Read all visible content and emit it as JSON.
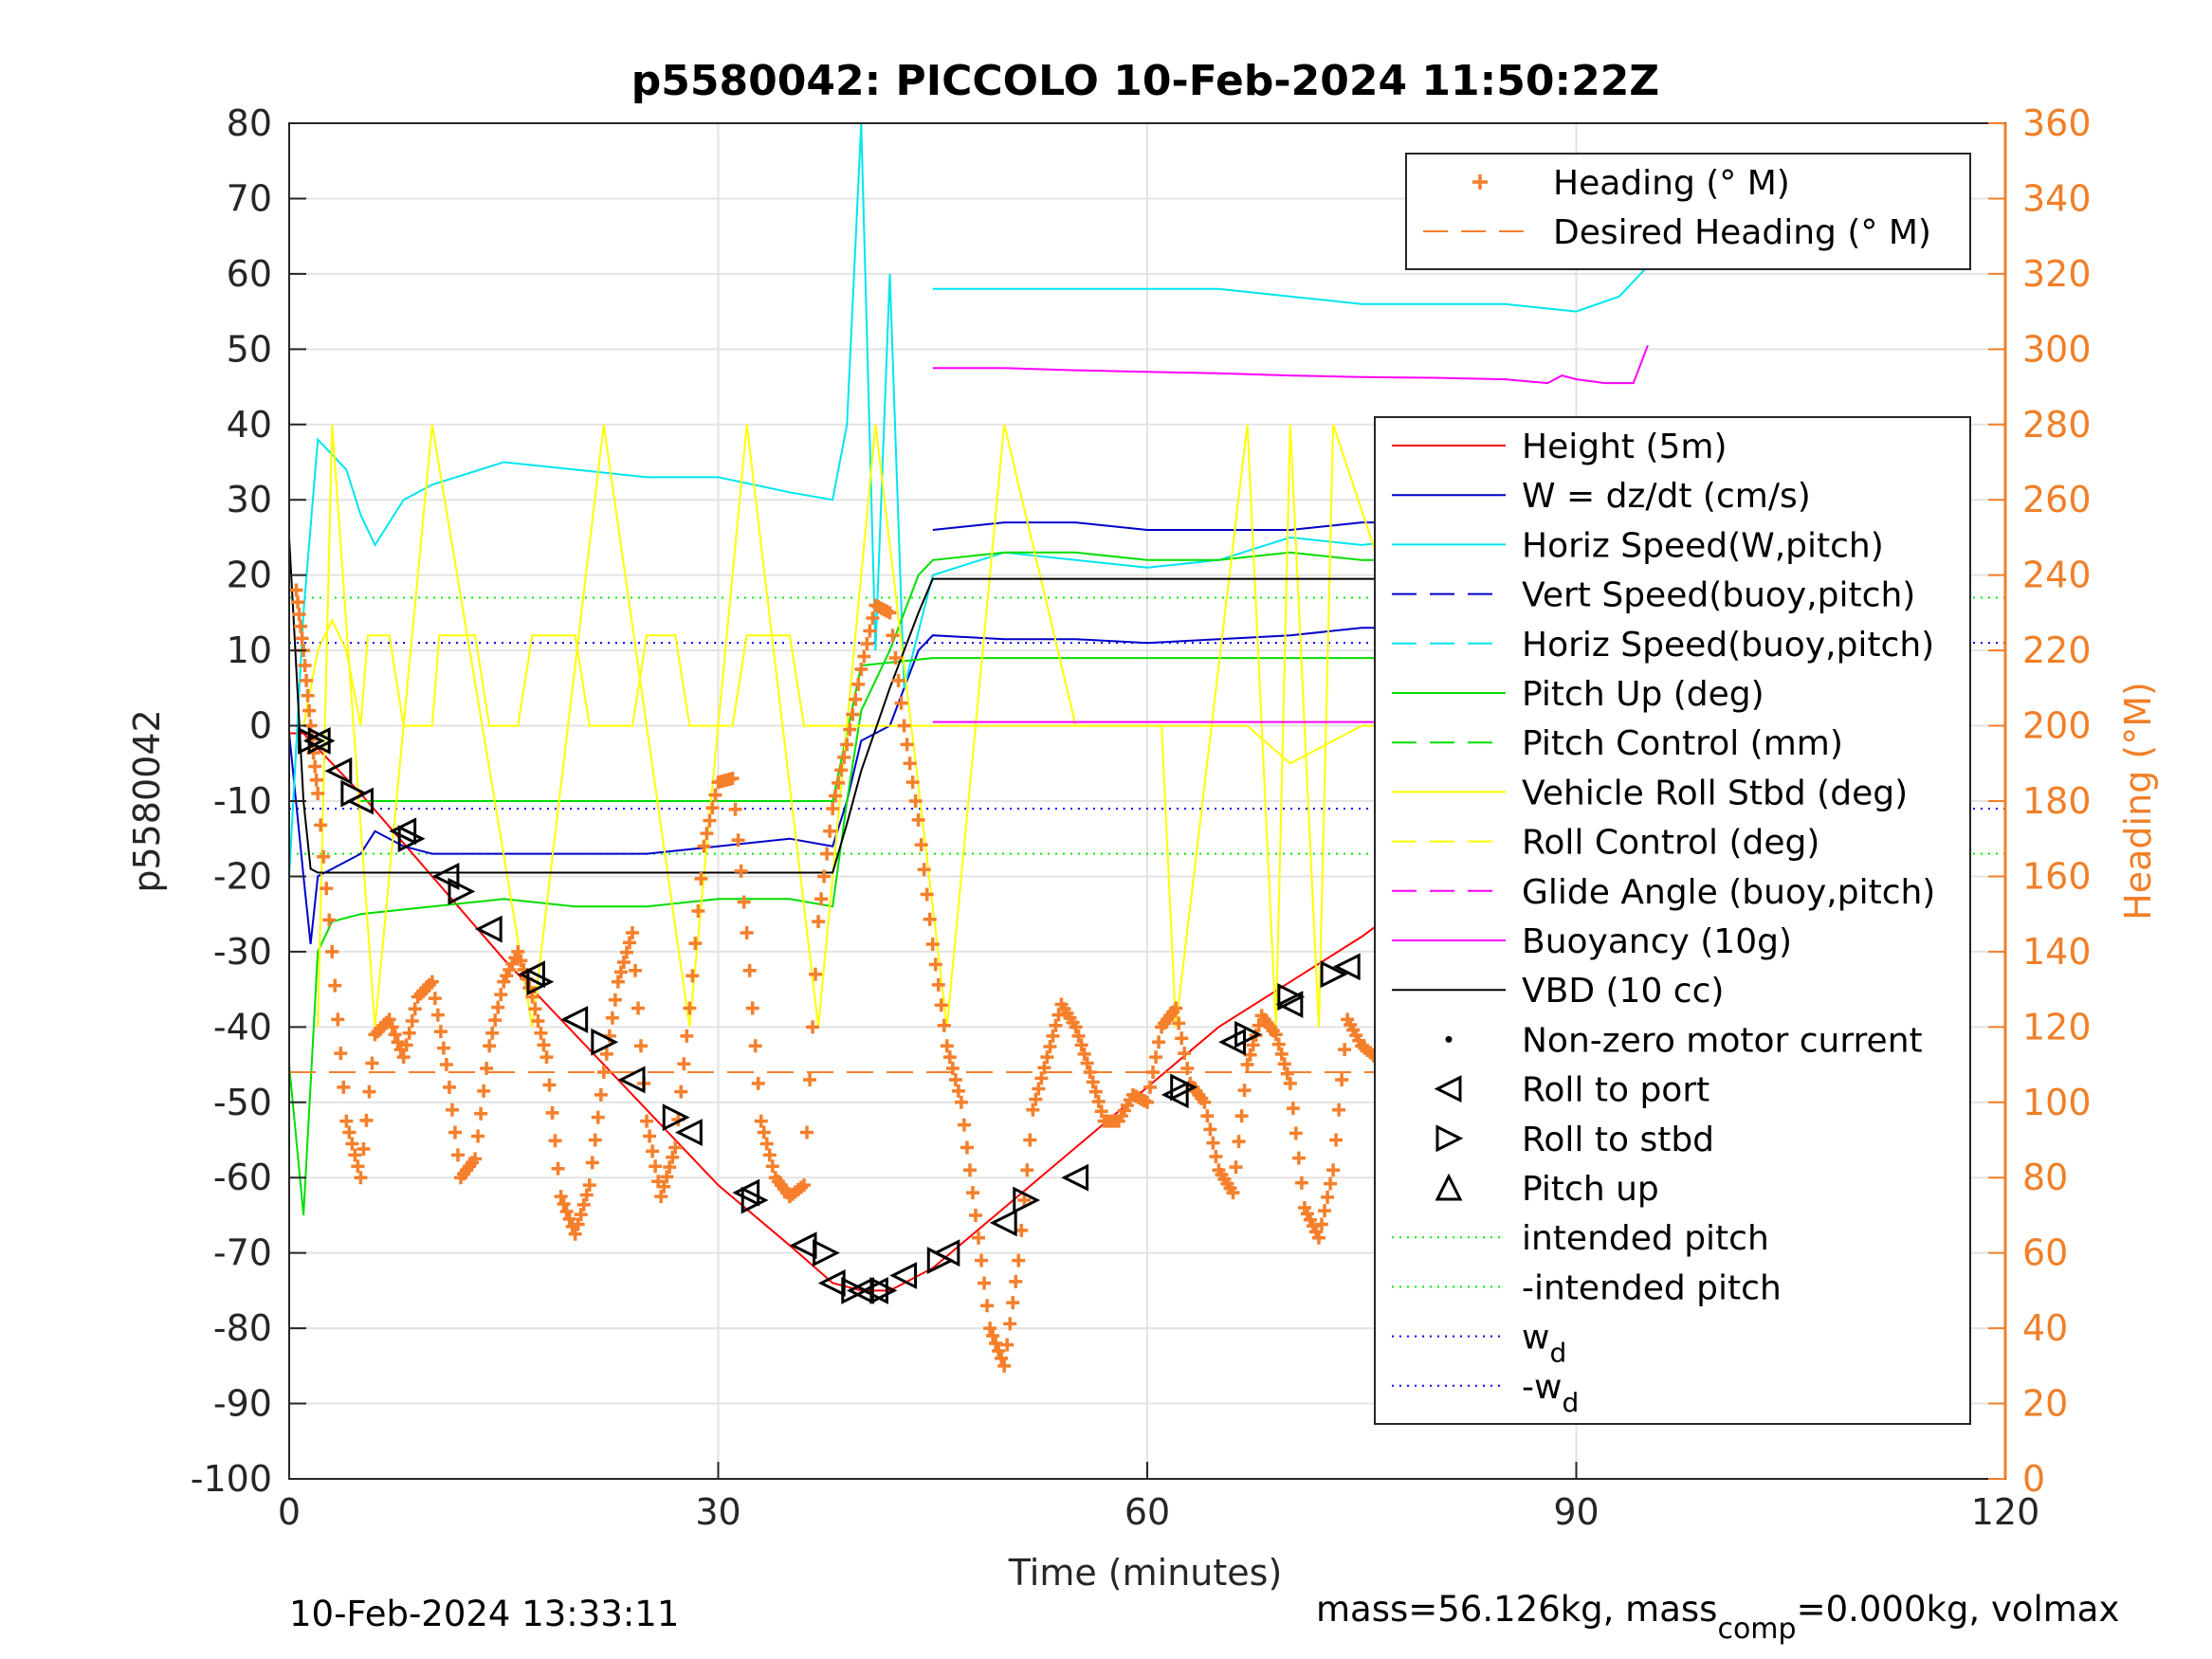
{
  "chart_data": {
    "type": "line",
    "title": "p5580042: PICCOLO 10-Feb-2024 11:50:22Z",
    "xlabel": "Time (minutes)",
    "ylabel": "p5580042",
    "ylabel_right": "Heading (°M)",
    "xlim": [
      0,
      120
    ],
    "ylim": [
      -100,
      80
    ],
    "ylim_right": [
      0,
      360
    ],
    "xticks": [
      "0",
      "30",
      "60",
      "90",
      "120"
    ],
    "yticks": [
      "80",
      "70",
      "60",
      "50",
      "40",
      "30",
      "20",
      "10",
      "0",
      "-10",
      "-20",
      "-30",
      "-40",
      "-50",
      "-60",
      "-70",
      "-80",
      "-90",
      "-100"
    ],
    "yticks_right": [
      "360",
      "340",
      "320",
      "300",
      "280",
      "260",
      "240",
      "220",
      "200",
      "180",
      "160",
      "140",
      "120",
      "100",
      "80",
      "60",
      "40",
      "20",
      "0"
    ],
    "grid": true,
    "footer_left": "10-Feb-2024 13:33:11",
    "footer_right": "mass=56.126kg, mass",
    "footer_right_sub": "comp",
    "footer_right_tail": "=0.000kg, volmax",
    "colors": {
      "axis_right": "#f07f28",
      "heading": "#f57f2a"
    },
    "legend_heading": [
      {
        "label": "Heading (° M)",
        "color": "#f57f2a",
        "style": "plus"
      },
      {
        "label": "Desired Heading (° M)",
        "color": "#f57f2a",
        "style": "dash"
      }
    ],
    "legend_main": [
      {
        "label": "Height (5m)",
        "color": "#ff0000",
        "style": "solid"
      },
      {
        "label": "W = dz/dt (cm/s)",
        "color": "#0000cc",
        "style": "solid"
      },
      {
        "label": "Horiz Speed(W,pitch)",
        "color": "#00e5ee",
        "style": "solid"
      },
      {
        "label": "Vert Speed(buoy,pitch)",
        "color": "#0000cc",
        "style": "dash"
      },
      {
        "label": "Horiz Speed(buoy,pitch)",
        "color": "#00e5ee",
        "style": "dash"
      },
      {
        "label": "Pitch Up (deg)",
        "color": "#00dd00",
        "style": "solid"
      },
      {
        "label": "Pitch Control (mm)",
        "color": "#00dd00",
        "style": "dash"
      },
      {
        "label": "Vehicle Roll Stbd (deg)",
        "color": "#ffff00",
        "style": "solid"
      },
      {
        "label": "Roll Control (deg)",
        "color": "#ffff00",
        "style": "dash"
      },
      {
        "label": "Glide Angle (buoy,pitch)",
        "color": "#ff00ff",
        "style": "dash"
      },
      {
        "label": "Buoyancy (10g)",
        "color": "#ff00ff",
        "style": "solid"
      },
      {
        "label": "VBD (10 cc)",
        "color": "#000000",
        "style": "solid"
      },
      {
        "label": "Non-zero motor current",
        "color": "#000000",
        "style": "dot"
      },
      {
        "label": "Roll to port",
        "color": "#000000",
        "style": "tri-left"
      },
      {
        "label": "Roll to stbd",
        "color": "#000000",
        "style": "tri-right"
      },
      {
        "label": "Pitch up",
        "color": "#000000",
        "style": "tri-up"
      },
      {
        "label": "intended pitch",
        "color": "#00ee00",
        "style": "dotted"
      },
      {
        "label": "-intended pitch",
        "color": "#00ee00",
        "style": "dotted"
      },
      {
        "label": "w",
        "sub": "d",
        "color": "#0000ff",
        "style": "dotted"
      },
      {
        "label": "-w",
        "sub": "d",
        "color": "#0000ff",
        "style": "dotted"
      }
    ],
    "reference_lines": [
      {
        "name": "intended pitch",
        "y": 17,
        "color": "#00ee00"
      },
      {
        "name": "-intended pitch",
        "y": -17,
        "color": "#00ee00"
      },
      {
        "name": "w_d",
        "y": 11,
        "color": "#0000ff"
      },
      {
        "name": "-w_d",
        "y": -11,
        "color": "#0000ff"
      }
    ],
    "series": [
      {
        "name": "Height (5m)",
        "color": "#ff0000",
        "x": [
          0,
          1,
          2,
          5,
          10,
          15,
          20,
          25,
          30,
          35,
          38,
          40,
          42,
          45,
          50,
          55,
          60,
          65,
          70,
          75,
          80,
          85,
          90,
          95
        ],
        "y": [
          -1,
          -1,
          -3,
          -9,
          -20,
          -31,
          -41,
          -51,
          -61,
          -69,
          -74,
          -75,
          -75,
          -72,
          -64,
          -56,
          -48,
          -40,
          -34,
          -28,
          -21,
          -14,
          -7,
          -1
        ]
      },
      {
        "name": "W = dz/dt (cm/s)",
        "color": "#0000cc",
        "x": [
          0,
          1,
          1.5,
          2,
          3,
          5,
          6,
          8,
          10,
          15,
          20,
          25,
          30,
          35,
          38,
          39,
          40,
          42,
          44,
          45,
          50,
          55,
          60,
          65,
          70,
          75,
          80,
          85,
          90,
          94,
          95
        ],
        "y": [
          -1,
          -20,
          -29,
          -20,
          -19,
          -17,
          -14,
          -16,
          -17,
          -17,
          -17,
          -17,
          -16,
          -15,
          -16,
          -10,
          -2,
          0,
          10,
          12,
          11.5,
          11.5,
          11,
          11.5,
          12,
          13,
          13,
          12.5,
          12,
          11,
          13
        ]
      },
      {
        "name": "Horiz Speed(W,pitch)",
        "color": "#00e5ee",
        "x": [
          0,
          1,
          2,
          4,
          5,
          6,
          8,
          10,
          15,
          20,
          25,
          30,
          35,
          38,
          39,
          40,
          41,
          42,
          43,
          45,
          50,
          55,
          60,
          65,
          70,
          75,
          80,
          85,
          90,
          93,
          95
        ],
        "y": [
          -20,
          15,
          38,
          34,
          28,
          24,
          30,
          32,
          35,
          34,
          33,
          33,
          31,
          30,
          40,
          80,
          10,
          60,
          5,
          20,
          23,
          22,
          21,
          22,
          25,
          24,
          25,
          26,
          22,
          20,
          35
        ]
      },
      {
        "name": "Vert Speed(buoy,pitch)",
        "color": "#0000cc",
        "x": [
          45,
          50,
          55,
          60,
          65,
          70,
          75,
          80,
          85,
          90,
          95
        ],
        "y": [
          26,
          27,
          27,
          26,
          26,
          26,
          27,
          27,
          26,
          26,
          25
        ]
      },
      {
        "name": "Horiz Speed(buoy,pitch)",
        "color": "#00e5ee",
        "x": [
          45,
          50,
          55,
          60,
          65,
          70,
          75,
          80,
          85,
          90,
          93,
          95
        ],
        "y": [
          58,
          58,
          58,
          58,
          58,
          57,
          56,
          56,
          56,
          55,
          57,
          61
        ]
      },
      {
        "name": "Pitch Up (deg)",
        "color": "#00dd00",
        "x": [
          0,
          1,
          2,
          3,
          5,
          10,
          15,
          20,
          25,
          30,
          35,
          38,
          39,
          40,
          42,
          44,
          45,
          50,
          55,
          60,
          65,
          70,
          75,
          80,
          85,
          90,
          94,
          95
        ],
        "y": [
          -45,
          -65,
          -30,
          -26,
          -25,
          -24,
          -23,
          -24,
          -24,
          -23,
          -23,
          -24,
          -10,
          2,
          10,
          20,
          22,
          23,
          23,
          22,
          22,
          23,
          22,
          22,
          22,
          21,
          20,
          18
        ]
      },
      {
        "name": "Pitch Control (mm)",
        "color": "#00dd00",
        "x": [
          5,
          10,
          20,
          30,
          38,
          40,
          45,
          50,
          60,
          70,
          80,
          90,
          95
        ],
        "y": [
          -10,
          -10,
          -10,
          -10,
          -10,
          8,
          9,
          9,
          9,
          9,
          9,
          9,
          9
        ]
      },
      {
        "name": "Vehicle Roll Stbd (deg)",
        "color": "#ffff00",
        "x": [
          1,
          2,
          3,
          4,
          5,
          5.5,
          7,
          8,
          10,
          10.5,
          13,
          14,
          16,
          17,
          20,
          21,
          24,
          25,
          27,
          28,
          31,
          32,
          35,
          36,
          38,
          40,
          45,
          50,
          60,
          61,
          62,
          66,
          67,
          70,
          75,
          80,
          83,
          84,
          87,
          88,
          90,
          93,
          95
        ],
        "y": [
          0,
          10,
          14,
          10,
          0,
          12,
          12,
          0,
          0,
          12,
          12,
          0,
          0,
          12,
          12,
          0,
          0,
          12,
          12,
          0,
          0,
          12,
          12,
          0,
          0,
          0,
          0,
          0,
          0,
          0,
          0,
          0,
          0,
          -5,
          0,
          0,
          0,
          12,
          12,
          0,
          0,
          10,
          0
        ]
      },
      {
        "name": "Roll Control (deg)",
        "color": "#ffff00",
        "x": [
          2,
          3,
          6,
          10,
          17,
          22,
          28,
          32,
          37,
          41,
          46,
          50,
          55,
          61,
          62,
          67,
          69,
          70,
          72,
          73,
          80,
          84,
          88,
          92,
          95
        ],
        "y": [
          -40,
          40,
          -40,
          40,
          -40,
          40,
          -40,
          40,
          -40,
          40,
          -40,
          40,
          0,
          0,
          -40,
          40,
          -40,
          40,
          -40,
          40,
          0,
          -40,
          40,
          -40,
          40
        ]
      },
      {
        "name": "Glide Angle (buoy,pitch)",
        "color": "#ff00ff",
        "x": [
          45,
          60,
          75,
          90,
          95
        ],
        "y": [
          0.5,
          0.5,
          0.5,
          0.5,
          0.5
        ]
      },
      {
        "name": "Buoyancy (10g)",
        "color": "#ff00ff",
        "x": [
          45,
          50,
          55,
          60,
          65,
          70,
          75,
          80,
          85,
          88,
          89,
          90,
          92,
          94,
          95
        ],
        "y": [
          47.5,
          47.5,
          47.2,
          47,
          46.8,
          46.5,
          46.3,
          46.2,
          46,
          45.5,
          46.5,
          46,
          45.5,
          45.5,
          50.5
        ]
      },
      {
        "name": "VBD (10 cc)",
        "color": "#000000",
        "x": [
          0,
          1,
          1.5,
          2,
          10,
          20,
          30,
          38,
          39,
          40,
          42,
          44,
          45,
          50,
          60,
          70,
          80,
          86,
          87,
          90,
          95
        ],
        "y": [
          25,
          -10,
          -19,
          -19.5,
          -19.5,
          -19.5,
          -19.5,
          -19.5,
          -13,
          -6,
          5,
          15,
          19.5,
          19.5,
          19.5,
          19.5,
          19.5,
          19.5,
          21,
          21,
          21
        ]
      },
      {
        "name": "Heading (° M)",
        "color": "#f57f2a",
        "axis": "right",
        "style": "plus",
        "x": [
          0.5,
          1,
          1.5,
          2,
          3,
          4,
          5,
          6,
          7,
          8,
          9,
          10,
          11,
          12,
          13,
          14,
          15,
          16,
          17,
          18,
          19,
          20,
          21,
          22,
          23,
          24,
          25,
          26,
          27,
          28,
          29,
          30,
          31,
          32,
          33,
          34,
          35,
          36,
          37,
          38,
          39,
          40,
          41,
          42,
          43,
          44,
          45,
          46,
          47,
          48,
          49,
          50,
          51,
          52,
          53,
          54,
          55,
          56,
          57,
          58,
          59,
          60,
          61,
          62,
          63,
          64,
          65,
          66,
          67,
          68,
          69,
          70,
          71,
          72,
          73,
          74,
          75,
          76,
          77,
          78,
          79,
          80,
          81,
          82,
          83,
          84,
          85,
          86,
          87,
          88,
          89,
          90,
          91,
          92,
          93,
          94
        ],
        "y": [
          236,
          220,
          200,
          182,
          140,
          95,
          80,
          118,
          122,
          112,
          128,
          132,
          110,
          80,
          85,
          115,
          132,
          140,
          128,
          112,
          75,
          65,
          78,
          108,
          132,
          145,
          95,
          75,
          88,
          125,
          168,
          185,
          186,
          145,
          95,
          80,
          75,
          78,
          148,
          178,
          195,
          215,
          232,
          230,
          200,
          175,
          142,
          115,
          100,
          70,
          40,
          30,
          58,
          98,
          112,
          126,
          120,
          108,
          95,
          95,
          102,
          100,
          120,
          125,
          105,
          100,
          82,
          76,
          110,
          123,
          118,
          105,
          72,
          64,
          82,
          122,
          115,
          112,
          107,
          105,
          100,
          108,
          90,
          128,
          150,
          130,
          90,
          62,
          95,
          140,
          197,
          212,
          175,
          155,
          195,
          205
        ]
      },
      {
        "name": "Desired Heading (° M)",
        "color": "#f57f2a",
        "axis": "right",
        "style": "dash",
        "x": [
          0,
          95
        ],
        "y": [
          108,
          108
        ]
      }
    ],
    "markers": {
      "roll_to_port": {
        "x": [
          2,
          3.5,
          5,
          8,
          11,
          14,
          17,
          20,
          24,
          28,
          32,
          36,
          38,
          40,
          41,
          43,
          46,
          50,
          55,
          62,
          66,
          70,
          74,
          80,
          83,
          86,
          89,
          93
        ],
        "y": [
          -2,
          -6,
          -10,
          -14,
          -20,
          -27,
          -33,
          -39,
          -47,
          -54,
          -62,
          -69,
          -74,
          -75,
          -75,
          -73,
          -70,
          -66,
          -60,
          -49,
          -42,
          -37,
          -32,
          -21,
          -17,
          -14,
          -10,
          -3
        ]
      },
      "roll_to_stbd": {
        "x": [
          1.5,
          2.2,
          4.5,
          8.5,
          12,
          17.5,
          22,
          27,
          32.5,
          37.5,
          39.5,
          41.5,
          45.5,
          51.5,
          62.5,
          67,
          70,
          73,
          80.2,
          85,
          88,
          92.5,
          94.5
        ],
        "y": [
          -2,
          -2,
          -9,
          -15,
          -22,
          -34,
          -42,
          -52,
          -63,
          -70,
          -75,
          -75,
          -71,
          -63,
          -48,
          -41,
          -36,
          -33,
          -20,
          -15,
          -8,
          -3,
          -1
        ]
      }
    }
  }
}
